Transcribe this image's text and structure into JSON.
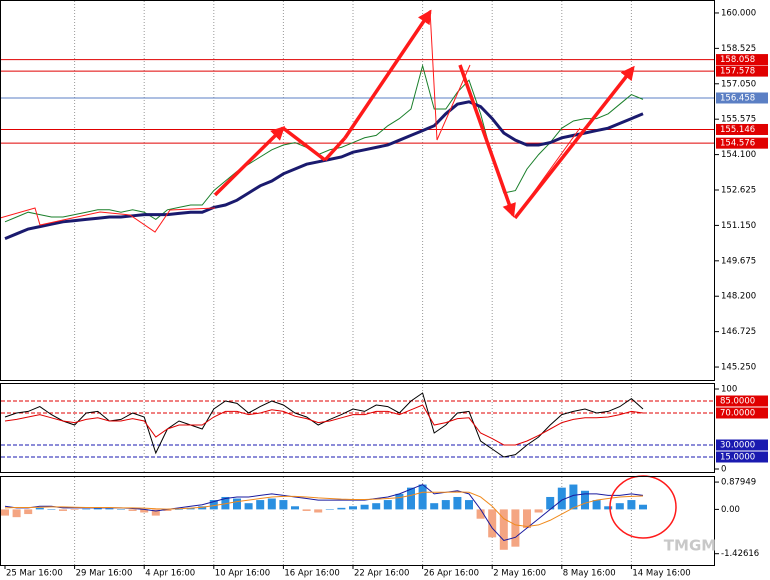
{
  "chart_data": [
    {
      "type": "line",
      "ylim": [
        144.71,
        160.54
      ],
      "yticks": [
        {
          "value": 160,
          "label": "160.000"
        },
        158.525,
        {
          "value": 157.05,
          "label": "157.050"
        },
        155.575,
        {
          "value": 154.1,
          "label": "154.100"
        },
        152.625,
        {
          "value": 151.15,
          "label": "151.150"
        },
        149.675,
        {
          "value": 148.2,
          "label": "148.200"
        },
        146.725,
        {
          "value": 145.25,
          "label": "145.250"
        }
      ],
      "levels": [
        {
          "value": 158.058,
          "color": "#e00000"
        },
        {
          "value": 157.578,
          "color": "#e00000"
        },
        {
          "value": 156.458,
          "color": "#5b7fc4"
        },
        {
          "value": 155.146,
          "color": "#e00000"
        },
        {
          "value": 154.576,
          "color": "#e00000"
        }
      ],
      "series": [
        {
          "color": "#1a7f2a",
          "values": [
            151.3,
            151.5,
            151.7,
            151.6,
            151.5,
            151.5,
            151.6,
            151.7,
            151.8,
            151.8,
            151.7,
            151.8,
            151.7,
            151.4,
            151.8,
            151.9,
            152.0,
            152.0,
            152.6,
            153.0,
            153.4,
            153.7,
            154.0,
            154.3,
            154.5,
            154.6,
            154.4,
            154.1,
            154.3,
            154.4,
            154.6,
            154.8,
            154.9,
            155.3,
            155.6,
            156.0,
            157.8,
            156.0,
            156.0,
            156.7,
            157.2,
            155.8,
            154.0,
            152.5,
            152.6,
            153.5,
            154.1,
            154.6,
            155.2,
            155.5,
            155.6,
            155.6,
            155.8,
            156.2,
            156.6,
            156.4
          ]
        },
        {
          "color": "#1a1a6e",
          "values": [
            150.6,
            150.8,
            151.0,
            151.1,
            151.2,
            151.3,
            151.35,
            151.4,
            151.45,
            151.5,
            151.5,
            151.55,
            151.6,
            151.6,
            151.6,
            151.65,
            151.7,
            151.7,
            151.9,
            152.0,
            152.2,
            152.5,
            152.8,
            153.0,
            153.3,
            153.5,
            153.7,
            153.8,
            153.9,
            154.0,
            154.2,
            154.3,
            154.4,
            154.5,
            154.7,
            154.9,
            155.1,
            155.3,
            155.8,
            156.2,
            156.3,
            156.1,
            155.6,
            155.0,
            154.7,
            154.5,
            154.5,
            154.6,
            154.8,
            154.9,
            155.0,
            155.1,
            155.2,
            155.4,
            155.6,
            155.8
          ]
        }
      ]
    },
    {
      "type": "line",
      "ylim": [
        -3.75,
        107.5
      ],
      "yticks": [
        100,
        0
      ],
      "levels": [
        {
          "value": 85,
          "label": "85.0000",
          "color": "#e00000"
        },
        {
          "value": 70,
          "label": "70.0000",
          "color": "#e00000"
        },
        {
          "value": 30,
          "label": "30.0000",
          "color": "#1a1ab0"
        },
        {
          "value": 15,
          "label": "15.0000",
          "color": "#1a1ab0"
        }
      ],
      "series": [
        {
          "color": "#000000",
          "values": [
            65,
            70,
            72,
            78,
            68,
            60,
            55,
            70,
            72,
            60,
            62,
            70,
            65,
            20,
            50,
            60,
            55,
            50,
            75,
            85,
            82,
            70,
            78,
            85,
            80,
            70,
            65,
            55,
            62,
            68,
            75,
            72,
            80,
            78,
            70,
            85,
            95,
            45,
            55,
            70,
            72,
            35,
            25,
            15,
            18,
            30,
            40,
            55,
            68,
            72,
            75,
            70,
            72,
            78,
            88,
            75
          ]
        },
        {
          "color": "#e00000",
          "values": [
            60,
            62,
            65,
            68,
            64,
            60,
            58,
            62,
            64,
            60,
            60,
            63,
            60,
            40,
            50,
            55,
            55,
            55,
            65,
            72,
            72,
            68,
            70,
            74,
            72,
            66,
            63,
            58,
            60,
            64,
            68,
            68,
            72,
            72,
            68,
            74,
            80,
            55,
            58,
            63,
            64,
            45,
            38,
            30,
            30,
            35,
            42,
            50,
            58,
            62,
            64,
            64,
            65,
            68,
            72,
            70
          ]
        }
      ]
    },
    {
      "type": "bar",
      "ylim": [
        -1.79,
        1.075
      ],
      "yticks": [
        0.87949,
        {
          "value": 0,
          "label": "0.00"
        },
        -1.42616
      ],
      "positive_color": "#2a8fe0",
      "negative_color": "#f4a582",
      "categories": [
        "25 Mar 16:00",
        null,
        null,
        null,
        null,
        null,
        "29 Mar 16:00",
        null,
        null,
        null,
        null,
        null,
        "4 Apr 16:00",
        null,
        null,
        null,
        null,
        null,
        "10 Apr 16:00",
        null,
        null,
        null,
        null,
        null,
        "16 Apr 16:00",
        null,
        null,
        null,
        null,
        null,
        "22 Apr 16:00",
        null,
        null,
        null,
        null,
        null,
        "26 Apr 16:00",
        null,
        null,
        null,
        null,
        null,
        "2 May 16:00",
        null,
        null,
        null,
        null,
        null,
        "8 May 16:00",
        null,
        null,
        null,
        null,
        null,
        "14 May 16:00",
        null
      ],
      "values": [
        -0.2,
        -0.25,
        -0.15,
        0.05,
        0.0,
        -0.05,
        -0.02,
        0.02,
        0.05,
        0.03,
        0.0,
        -0.05,
        -0.1,
        -0.2,
        -0.05,
        0.0,
        0.05,
        0.1,
        0.3,
        0.4,
        0.35,
        0.2,
        0.3,
        0.35,
        0.3,
        0.1,
        -0.05,
        -0.1,
        0.0,
        0.05,
        0.1,
        0.15,
        0.2,
        0.3,
        0.5,
        0.7,
        0.8,
        0.2,
        0.3,
        0.4,
        0.3,
        -0.3,
        -0.9,
        -1.3,
        -1.2,
        -0.6,
        -0.1,
        0.4,
        0.7,
        0.8,
        0.6,
        0.3,
        0.1,
        0.2,
        0.3,
        0.15
      ],
      "series": [
        {
          "color": "#1a1a9e",
          "values": [
            0.1,
            0.05,
            0.05,
            0.1,
            0.1,
            0.05,
            0.05,
            0.05,
            0.05,
            0.05,
            0.05,
            0.03,
            0.0,
            -0.05,
            0.0,
            0.05,
            0.1,
            0.15,
            0.25,
            0.35,
            0.4,
            0.4,
            0.45,
            0.5,
            0.45,
            0.4,
            0.35,
            0.3,
            0.3,
            0.3,
            0.3,
            0.3,
            0.35,
            0.4,
            0.5,
            0.65,
            0.8,
            0.5,
            0.55,
            0.6,
            0.5,
            0.0,
            -0.6,
            -1.0,
            -0.9,
            -0.6,
            -0.3,
            0.0,
            0.3,
            0.45,
            0.5,
            0.5,
            0.45,
            0.45,
            0.5,
            0.45
          ]
        },
        {
          "color": "#f08a1c",
          "values": [
            0.05,
            0.06,
            0.06,
            0.07,
            0.08,
            0.08,
            0.07,
            0.06,
            0.06,
            0.06,
            0.05,
            0.05,
            0.04,
            0.02,
            0.01,
            0.02,
            0.04,
            0.07,
            0.12,
            0.18,
            0.25,
            0.3,
            0.35,
            0.4,
            0.42,
            0.42,
            0.4,
            0.37,
            0.35,
            0.33,
            0.32,
            0.32,
            0.33,
            0.35,
            0.38,
            0.45,
            0.55,
            0.55,
            0.55,
            0.56,
            0.55,
            0.4,
            0.1,
            -0.3,
            -0.5,
            -0.55,
            -0.5,
            -0.35,
            -0.15,
            0.05,
            0.2,
            0.3,
            0.35,
            0.4,
            0.42,
            0.43
          ]
        }
      ]
    }
  ],
  "watermark": "TMGM"
}
